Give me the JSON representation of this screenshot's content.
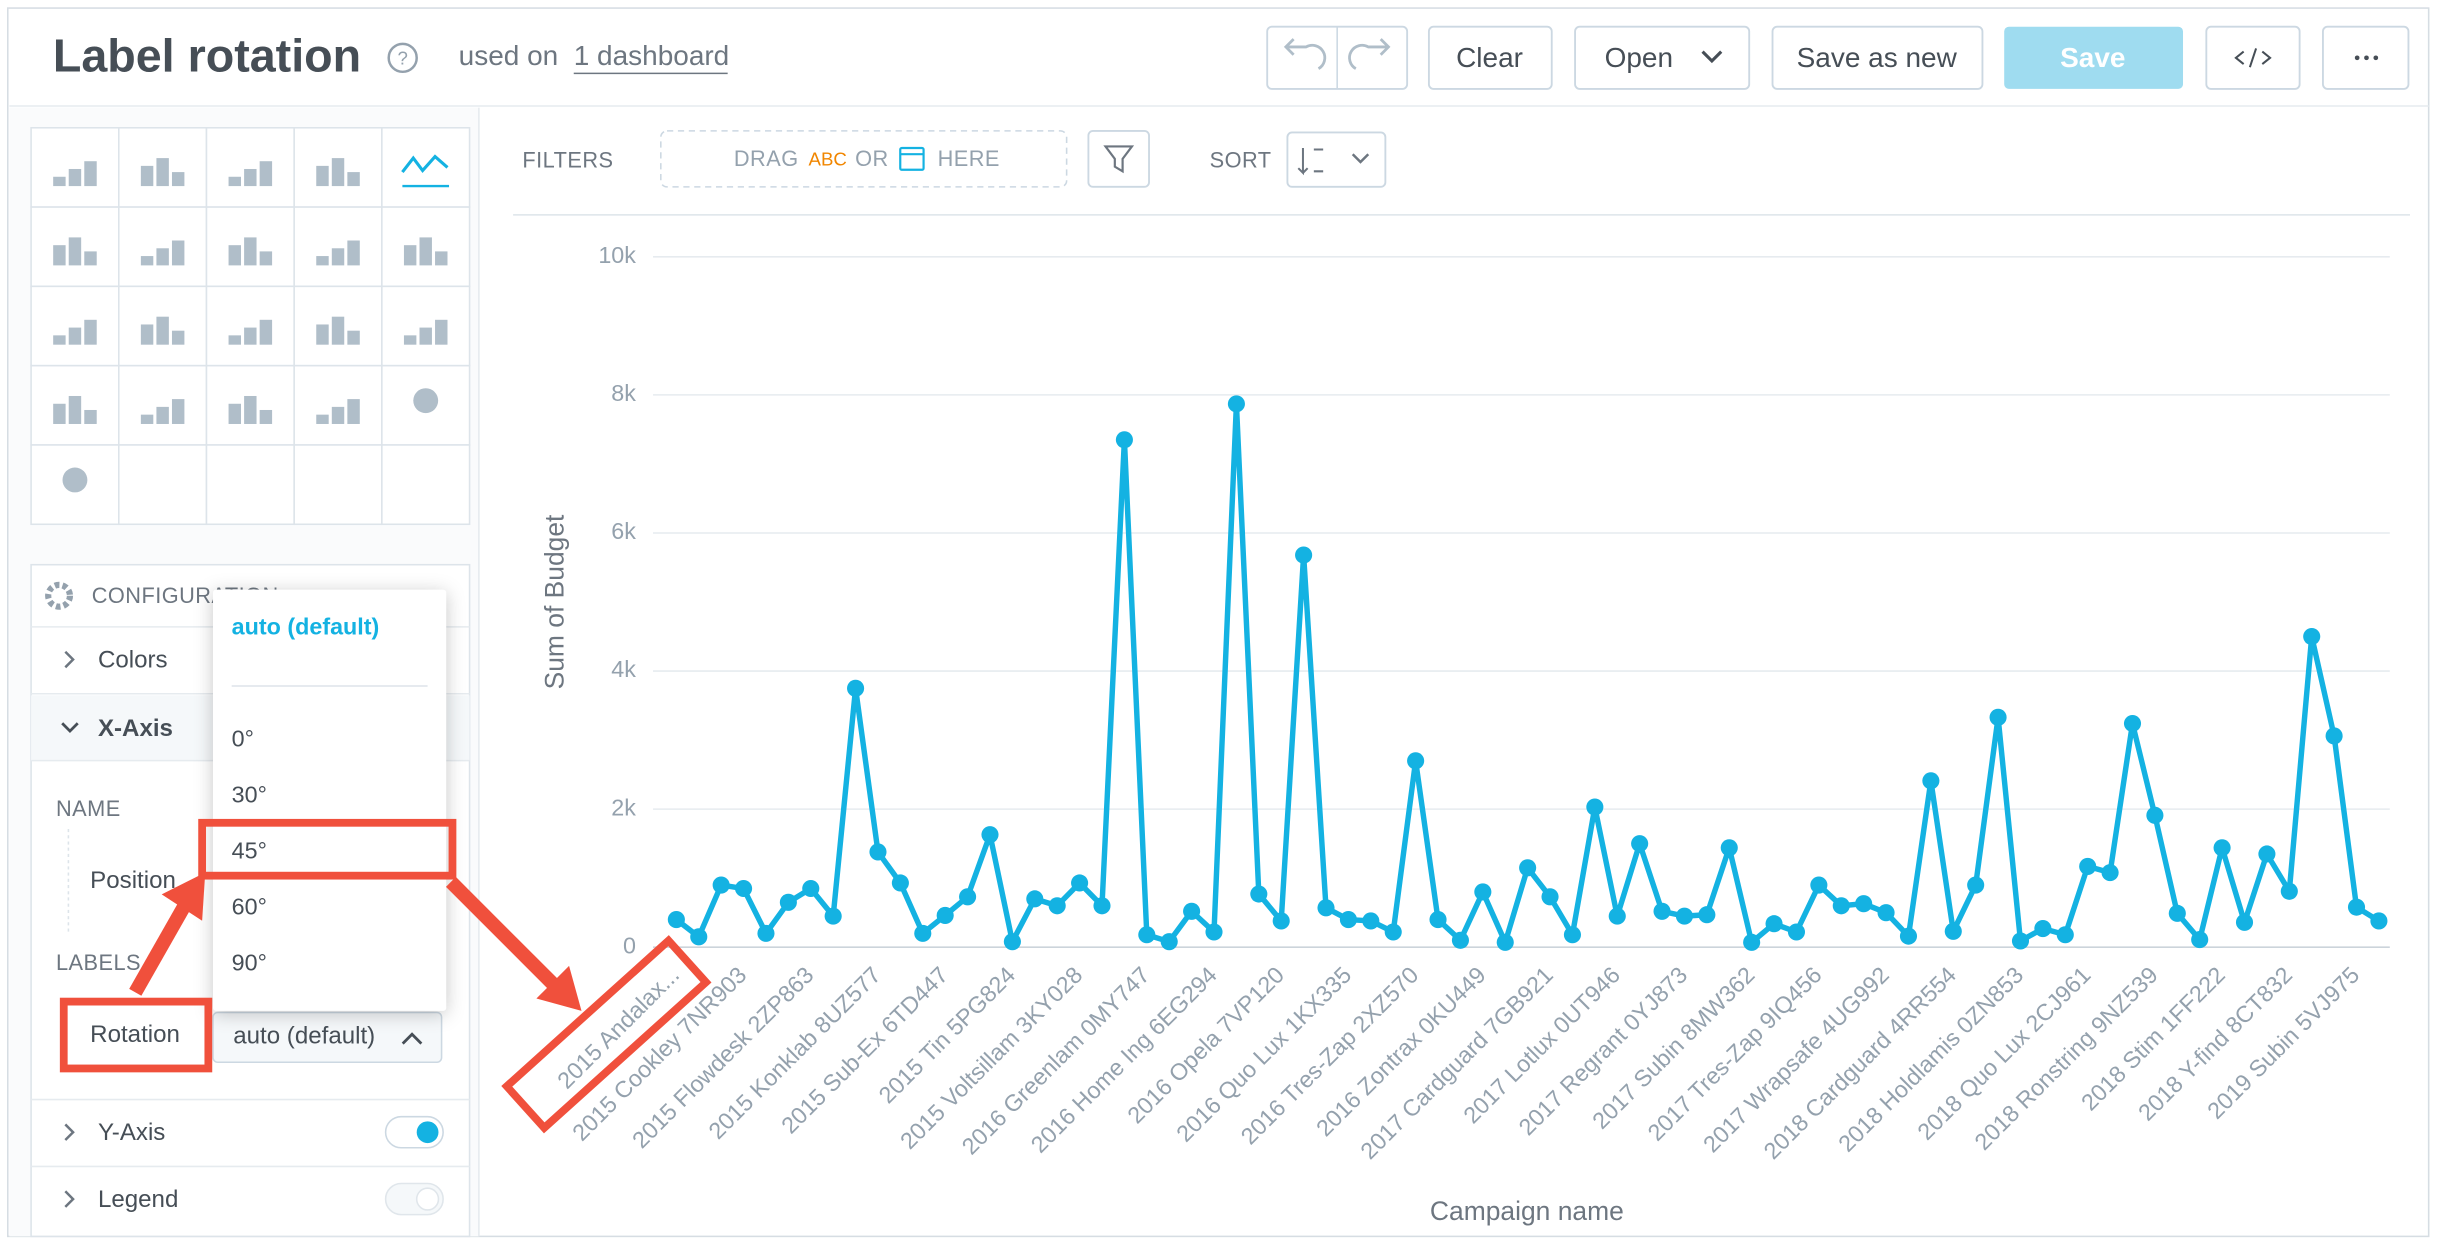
{
  "header": {
    "title": "Label rotation",
    "used_on": "used on",
    "dashboard_link": "1 dashboard",
    "buttons": [
      "Clear",
      "Open",
      "Save as new",
      "Save"
    ]
  },
  "filter_bar": {
    "filters_label": "FILTERS",
    "drag": "DRAG",
    "attribute": "ABC",
    "or": "OR",
    "here": "HERE",
    "sort_label": "SORT"
  },
  "config": {
    "title": "CONFIGURATION",
    "colors": "Colors",
    "x_axis": "X-Axis",
    "name_label": "NAME",
    "position_label": "Position",
    "labels_label": "LABELS",
    "rotation_label": "Rotation",
    "rotation_value": "auto (default)",
    "y_axis": "Y-Axis",
    "legend": "Legend"
  },
  "dropdown": {
    "options": [
      "auto (default)",
      "0°",
      "30°",
      "45°",
      "60°",
      "90°"
    ]
  },
  "chart_data": {
    "type": "line",
    "y_label": "Sum of Budget",
    "x_label": "Campaign name",
    "color": "#14b2e2",
    "grid": true,
    "ylim": [
      0,
      10000
    ],
    "yticks": [
      0,
      {
        "value": 2000,
        "label": "2k"
      },
      {
        "value": 4000,
        "label": "4k"
      },
      {
        "value": 6000,
        "label": "6k"
      },
      {
        "value": 8000,
        "label": "8k"
      },
      {
        "value": 10000,
        "label": "10k"
      }
    ],
    "categories": [
      "2015 Andalax...",
      null,
      null,
      "2015 Cookley 7NR903",
      null,
      null,
      "2015 Flowdesk 2ZP863",
      null,
      null,
      "2015 Konklab 8UZ577",
      null,
      null,
      "2015 Sub-Ex 6TD447",
      null,
      null,
      "2015 Tin 5PG824",
      null,
      null,
      "2015 Voltsillam 3KY028",
      null,
      null,
      "2016 Greenlam 0MY747",
      null,
      null,
      "2016 Home Ing 6EG294",
      null,
      null,
      "2016 Opela 7VP120",
      null,
      null,
      "2016 Quo Lux 1KX335",
      null,
      null,
      "2016 Tres-Zap 2XZ570",
      null,
      null,
      "2016 Zontrax 0KU449",
      null,
      null,
      "2017 Cardguard 7GB921",
      null,
      null,
      "2017 Lotlux 0UT946",
      null,
      null,
      "2017 Regrant 0YJ873",
      null,
      null,
      "2017 Subin 8MW362",
      null,
      null,
      "2017 Tres-Zap 9IQ456",
      null,
      null,
      "2017 Wrapsafe 4UG992",
      null,
      null,
      "2018 Cardguard 4RR554",
      null,
      null,
      "2018 Holdlamis 0ZN853",
      null,
      null,
      "2018 Quo Lux 2CJ961",
      null,
      null,
      "2018 Ronstring 9NZ539",
      null,
      null,
      "2018 Stim 1FF222",
      null,
      null,
      "2018 Y-find 8CT832",
      null,
      null,
      "2019 Subin 5VJ975",
      null
    ],
    "values": [
      400,
      150,
      900,
      850,
      200,
      650,
      850,
      450,
      3750,
      1380,
      930,
      200,
      460,
      730,
      1630,
      80,
      700,
      600,
      930,
      600,
      7350,
      180,
      80,
      520,
      220,
      7870,
      770,
      380,
      5680,
      570,
      400,
      380,
      220,
      2700,
      400,
      100,
      800,
      70,
      1150,
      730,
      180,
      2030,
      450,
      1500,
      520,
      450,
      470,
      1440,
      70,
      340,
      220,
      900,
      600,
      630,
      500,
      160,
      2410,
      230,
      900,
      3330,
      90,
      270,
      180,
      1170,
      1080,
      3240,
      1910,
      490,
      110,
      1440,
      360,
      1350,
      810,
      4500,
      3060,
      580,
      380
    ]
  }
}
